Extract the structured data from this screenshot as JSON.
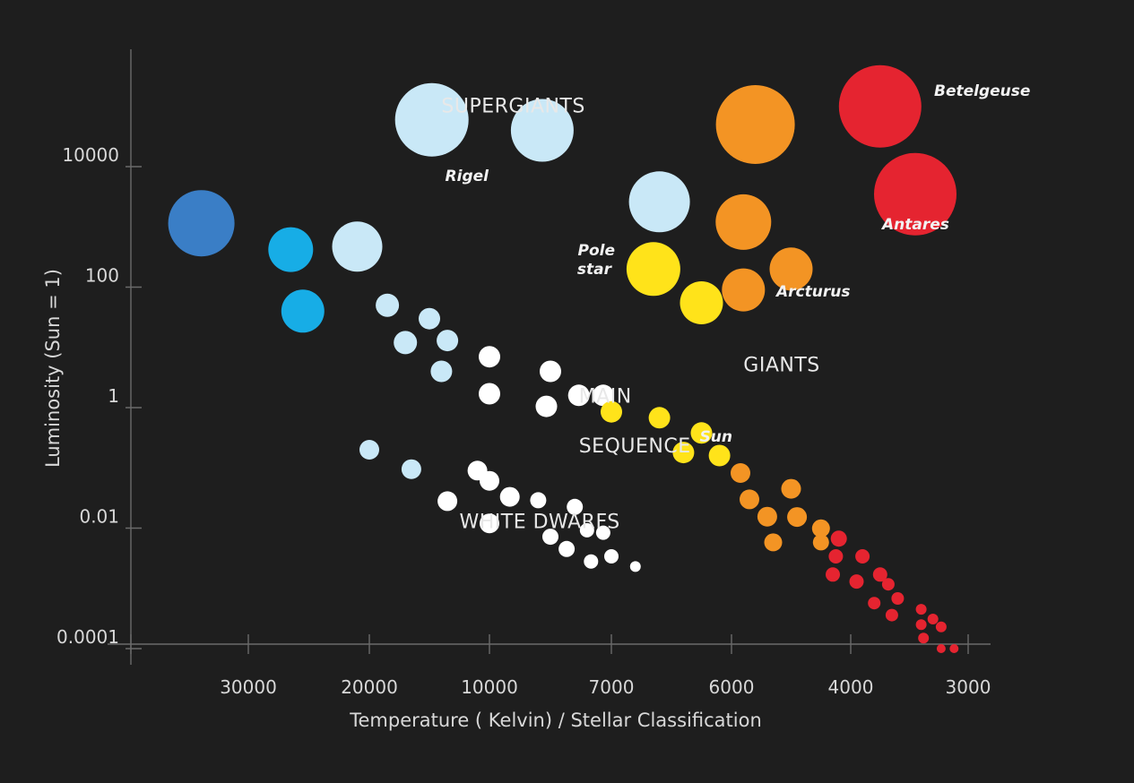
{
  "chart_data": {
    "type": "scatter",
    "title": "",
    "xlabel": "Temperature ( Kelvin) / Stellar Classification",
    "ylabel": "Luminosity (Sun = 1)",
    "y_scale": "log",
    "x_axis_direction": "decreasing temperature left to right",
    "x_ticks": [
      "30000",
      "20000",
      "10000",
      "7000",
      "6000",
      "4000",
      "3000"
    ],
    "y_ticks": [
      "10000",
      "100",
      "1",
      "0.01",
      "0.0001"
    ],
    "grid": false,
    "colors": {
      "background": "#1e1e1e",
      "axis": "#6a6a6a",
      "text": "#d8d8d8"
    },
    "regions": [
      {
        "label": "SUPERGIANTS",
        "x_temp": 14000,
        "y_lum": 80000
      },
      {
        "label": "GIANTS",
        "x_temp": 5800,
        "y_lum": 4
      },
      {
        "label": "MAIN",
        "x_temp": 7800,
        "y_lum": 1.2
      },
      {
        "label": "SEQUENCE",
        "x_temp": 7800,
        "y_lum": 0.18
      },
      {
        "label": "WHITE DWARFS",
        "x_temp": 12500,
        "y_lum": 0.01
      }
    ],
    "named_stars": [
      {
        "name": "Betelgeuse",
        "temp": 3250,
        "luminosity": 100000,
        "color": "#e52430"
      },
      {
        "name": "Antares",
        "temp": 3400,
        "luminosity": 1000,
        "color": "#e52430"
      },
      {
        "name": "Rigel",
        "temp": 13500,
        "luminosity": 8000,
        "color": "#c9e8f7"
      },
      {
        "name": "Pole star",
        "temp": 7300,
        "luminosity": 200,
        "color": "#ffe31a"
      },
      {
        "name": "Arcturus",
        "temp": 5500,
        "luminosity": 30,
        "color": "#f39424"
      },
      {
        "name": "Sun",
        "temp": 6350,
        "luminosity": 0.5,
        "color": "#ffe31a"
      }
    ],
    "stars": [
      {
        "temp": 14800,
        "luminosity": 60000,
        "r": 41,
        "color": "#c9e8f7"
      },
      {
        "temp": 8700,
        "luminosity": 40000,
        "r": 35,
        "color": "#c9e8f7"
      },
      {
        "temp": 6600,
        "luminosity": 2600,
        "r": 34,
        "color": "#c9e8f7"
      },
      {
        "temp": 34000,
        "luminosity": 1150,
        "r": 37,
        "color": "#3a7ec6"
      },
      {
        "temp": 26500,
        "luminosity": 420,
        "r": 25,
        "color": "#17ade6"
      },
      {
        "temp": 21000,
        "luminosity": 470,
        "r": 28,
        "color": "#c9e8f7"
      },
      {
        "temp": 25500,
        "luminosity": 40,
        "r": 24,
        "color": "#17ade6"
      },
      {
        "temp": 18500,
        "luminosity": 50,
        "r": 13,
        "color": "#c9e8f7"
      },
      {
        "temp": 15000,
        "luminosity": 30,
        "r": 12,
        "color": "#c9e8f7"
      },
      {
        "temp": 17000,
        "luminosity": 12,
        "r": 13,
        "color": "#c9e8f7"
      },
      {
        "temp": 13500,
        "luminosity": 13,
        "r": 12,
        "color": "#c9e8f7"
      },
      {
        "temp": 14000,
        "luminosity": 4,
        "r": 12,
        "color": "#c9e8f7"
      },
      {
        "temp": 10000,
        "luminosity": 7,
        "r": 12,
        "color": "#ffffff"
      },
      {
        "temp": 8500,
        "luminosity": 4,
        "r": 12,
        "color": "#ffffff"
      },
      {
        "temp": 10000,
        "luminosity": 1.7,
        "r": 12,
        "color": "#ffffff"
      },
      {
        "temp": 8600,
        "luminosity": 1.05,
        "r": 12,
        "color": "#ffffff"
      },
      {
        "temp": 7800,
        "luminosity": 1.6,
        "r": 12,
        "color": "#ffffff"
      },
      {
        "temp": 7200,
        "luminosity": 1.6,
        "r": 12,
        "color": "#ffffff"
      },
      {
        "temp": 6650,
        "luminosity": 200,
        "r": 30,
        "color": "#ffe31a"
      },
      {
        "temp": 6250,
        "luminosity": 55,
        "r": 24,
        "color": "#ffe31a"
      },
      {
        "temp": 7000,
        "luminosity": 0.85,
        "r": 12,
        "color": "#ffe31a"
      },
      {
        "temp": 6600,
        "luminosity": 0.68,
        "r": 12,
        "color": "#ffe31a"
      },
      {
        "temp": 6250,
        "luminosity": 0.38,
        "r": 12,
        "color": "#ffe31a"
      },
      {
        "temp": 6400,
        "luminosity": 0.18,
        "r": 12,
        "color": "#ffe31a"
      },
      {
        "temp": 6100,
        "luminosity": 0.16,
        "r": 12,
        "color": "#ffe31a"
      },
      {
        "temp": 5600,
        "luminosity": 50000,
        "r": 44,
        "color": "#f39424"
      },
      {
        "temp": 5800,
        "luminosity": 1200,
        "r": 31,
        "color": "#f39424"
      },
      {
        "temp": 5000,
        "luminosity": 200,
        "r": 24,
        "color": "#f39424"
      },
      {
        "temp": 5800,
        "luminosity": 90,
        "r": 24,
        "color": "#f39424"
      },
      {
        "temp": 3750,
        "luminosity": 100000,
        "r": 46,
        "color": "#e52430"
      },
      {
        "temp": 3450,
        "luminosity": 3500,
        "r": 46,
        "color": "#e52430"
      },
      {
        "temp": 5850,
        "luminosity": 0.082,
        "r": 11,
        "color": "#f39424"
      },
      {
        "temp": 5700,
        "luminosity": 0.03,
        "r": 11,
        "color": "#f39424"
      },
      {
        "temp": 5000,
        "luminosity": 0.045,
        "r": 11,
        "color": "#f39424"
      },
      {
        "temp": 5400,
        "luminosity": 0.0155,
        "r": 11,
        "color": "#f39424"
      },
      {
        "temp": 4900,
        "luminosity": 0.0153,
        "r": 11,
        "color": "#f39424"
      },
      {
        "temp": 5300,
        "luminosity": 0.0058,
        "r": 10,
        "color": "#f39424"
      },
      {
        "temp": 4500,
        "luminosity": 0.0099,
        "r": 10,
        "color": "#f39424"
      },
      {
        "temp": 4500,
        "luminosity": 0.0058,
        "r": 9,
        "color": "#f39424"
      },
      {
        "temp": 4200,
        "luminosity": 0.0067,
        "r": 9,
        "color": "#e52430"
      },
      {
        "temp": 4250,
        "luminosity": 0.0034,
        "r": 8,
        "color": "#e52430"
      },
      {
        "temp": 3900,
        "luminosity": 0.0034,
        "r": 8,
        "color": "#e52430"
      },
      {
        "temp": 4300,
        "luminosity": 0.0017,
        "r": 8,
        "color": "#e52430"
      },
      {
        "temp": 3950,
        "luminosity": 0.0013,
        "r": 8,
        "color": "#e52430"
      },
      {
        "temp": 3750,
        "luminosity": 0.0017,
        "r": 8,
        "color": "#e52430"
      },
      {
        "temp": 3680,
        "luminosity": 0.00117,
        "r": 7,
        "color": "#e52430"
      },
      {
        "temp": 3800,
        "luminosity": 0.00057,
        "r": 7,
        "color": "#e52430"
      },
      {
        "temp": 3600,
        "luminosity": 0.00068,
        "r": 7,
        "color": "#e52430"
      },
      {
        "temp": 3650,
        "luminosity": 0.00036,
        "r": 7,
        "color": "#e52430"
      },
      {
        "temp": 3400,
        "luminosity": 0.00045,
        "r": 6,
        "color": "#e52430"
      },
      {
        "temp": 3300,
        "luminosity": 0.00031,
        "r": 6,
        "color": "#e52430"
      },
      {
        "temp": 3400,
        "luminosity": 0.00025,
        "r": 6,
        "color": "#e52430"
      },
      {
        "temp": 3230,
        "luminosity": 0.00023,
        "r": 6,
        "color": "#e52430"
      },
      {
        "temp": 3380,
        "luminosity": 0.00015,
        "r": 6,
        "color": "#e52430"
      },
      {
        "temp": 3230,
        "luminosity": 0.0001,
        "r": 5,
        "color": "#e52430"
      },
      {
        "temp": 3120,
        "luminosity": 0.0001,
        "r": 5,
        "color": "#e52430"
      },
      {
        "temp": 20000,
        "luminosity": 0.2,
        "r": 11,
        "color": "#c9e8f7"
      },
      {
        "temp": 16500,
        "luminosity": 0.095,
        "r": 11,
        "color": "#c9e8f7"
      },
      {
        "temp": 13500,
        "luminosity": 0.028,
        "r": 11,
        "color": "#ffffff"
      },
      {
        "temp": 11000,
        "luminosity": 0.09,
        "r": 11,
        "color": "#ffffff"
      },
      {
        "temp": 10000,
        "luminosity": 0.061,
        "r": 11,
        "color": "#ffffff"
      },
      {
        "temp": 9500,
        "luminosity": 0.033,
        "r": 11,
        "color": "#ffffff"
      },
      {
        "temp": 10000,
        "luminosity": 0.012,
        "r": 11,
        "color": "#ffffff"
      },
      {
        "temp": 8800,
        "luminosity": 0.029,
        "r": 9,
        "color": "#ffffff"
      },
      {
        "temp": 8500,
        "luminosity": 0.0072,
        "r": 9,
        "color": "#ffffff"
      },
      {
        "temp": 7900,
        "luminosity": 0.0225,
        "r": 9,
        "color": "#ffffff"
      },
      {
        "temp": 8100,
        "luminosity": 0.0045,
        "r": 9,
        "color": "#ffffff"
      },
      {
        "temp": 7600,
        "luminosity": 0.0092,
        "r": 8,
        "color": "#ffffff"
      },
      {
        "temp": 7200,
        "luminosity": 0.0084,
        "r": 8,
        "color": "#ffffff"
      },
      {
        "temp": 7500,
        "luminosity": 0.0028,
        "r": 8,
        "color": "#ffffff"
      },
      {
        "temp": 7000,
        "luminosity": 0.0034,
        "r": 8,
        "color": "#ffffff"
      },
      {
        "temp": 6800,
        "luminosity": 0.0023,
        "r": 6,
        "color": "#ffffff"
      }
    ]
  }
}
